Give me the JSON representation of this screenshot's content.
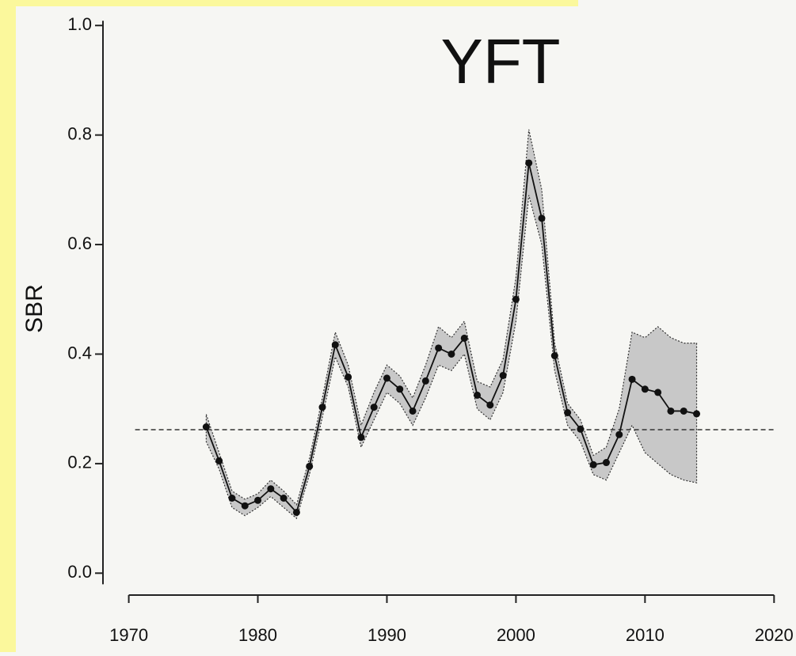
{
  "chart_data": {
    "type": "line",
    "title": "YFT",
    "y_label": "SBR",
    "x": [
      1976,
      1977,
      1978,
      1979,
      1980,
      1981,
      1982,
      1983,
      1984,
      1985,
      1986,
      1987,
      1988,
      1989,
      1990,
      1991,
      1992,
      1993,
      1994,
      1995,
      1996,
      1997,
      1998,
      1999,
      2000,
      2001,
      2002,
      2003,
      2004,
      2005,
      2006,
      2007,
      2008,
      2009,
      2010,
      2011,
      2012,
      2013,
      2014
    ],
    "values": [
      0.267,
      0.205,
      0.137,
      0.123,
      0.133,
      0.154,
      0.137,
      0.111,
      0.195,
      0.303,
      0.417,
      0.358,
      0.248,
      0.303,
      0.356,
      0.336,
      0.296,
      0.351,
      0.411,
      0.4,
      0.429,
      0.325,
      0.307,
      0.361,
      0.5,
      0.749,
      0.648,
      0.397,
      0.293,
      0.263,
      0.198,
      0.202,
      0.253,
      0.354,
      0.336,
      0.33,
      0.296,
      0.296,
      0.291
    ],
    "lower": [
      0.24,
      0.19,
      0.12,
      0.105,
      0.12,
      0.14,
      0.12,
      0.1,
      0.18,
      0.285,
      0.395,
      0.34,
      0.23,
      0.28,
      0.33,
      0.31,
      0.27,
      0.32,
      0.38,
      0.37,
      0.4,
      0.3,
      0.28,
      0.33,
      0.46,
      0.69,
      0.6,
      0.37,
      0.27,
      0.24,
      0.18,
      0.17,
      0.22,
      0.27,
      0.22,
      0.2,
      0.18,
      0.17,
      0.165
    ],
    "upper": [
      0.29,
      0.22,
      0.15,
      0.135,
      0.145,
      0.17,
      0.15,
      0.125,
      0.21,
      0.32,
      0.44,
      0.38,
      0.27,
      0.33,
      0.38,
      0.36,
      0.32,
      0.38,
      0.45,
      0.43,
      0.46,
      0.35,
      0.34,
      0.39,
      0.54,
      0.81,
      0.7,
      0.42,
      0.31,
      0.28,
      0.215,
      0.23,
      0.3,
      0.44,
      0.43,
      0.45,
      0.43,
      0.42,
      0.42
    ],
    "reference_line": 0.262,
    "color": "#111111",
    "band_color": "#c8c8c8",
    "xlim": [
      1968,
      2021.7
    ],
    "ylim": [
      -0.04,
      1.035
    ],
    "xticks": [
      1970,
      1980,
      1990,
      2000,
      2010,
      2020
    ],
    "yticks": [
      {
        "value": 0,
        "label": "0.0"
      },
      {
        "value": 0.2,
        "label": "0.2"
      },
      {
        "value": 0.4,
        "label": "0.4"
      },
      {
        "value": 0.6,
        "label": "0.6"
      },
      {
        "value": 0.8,
        "label": "0.8"
      },
      {
        "value": 1,
        "label": "1.0"
      }
    ]
  }
}
